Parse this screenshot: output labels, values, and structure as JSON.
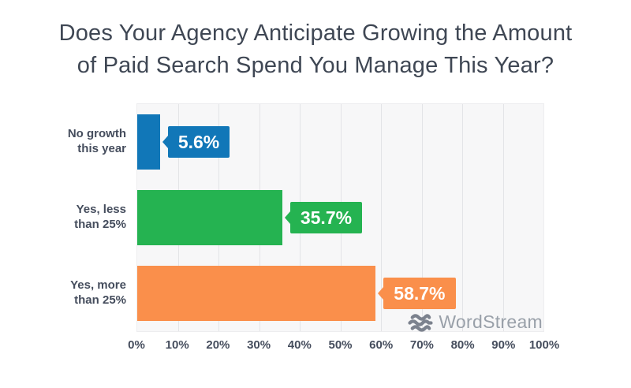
{
  "title": {
    "line1": "Does Your Agency Anticipate Growing the Amount",
    "line2": "of Paid Search Spend You Manage This Year?"
  },
  "chart_data": {
    "type": "bar",
    "orientation": "horizontal",
    "title": "Does Your Agency Anticipate Growing the Amount of Paid Search Spend You Manage This Year?",
    "categories": [
      "No growth\nthis year",
      "Yes, less\nthan 25%",
      "Yes, more\nthan 25%"
    ],
    "values": [
      5.6,
      35.7,
      58.7
    ],
    "value_labels": [
      "5.6%",
      "35.7%",
      "58.7%"
    ],
    "bar_colors": [
      "#1177b8",
      "#25b351",
      "#fa8f4b"
    ],
    "x_ticks": [
      "0%",
      "10%",
      "20%",
      "30%",
      "40%",
      "50%",
      "60%",
      "70%",
      "80%",
      "90%",
      "100%"
    ],
    "xlim": [
      0,
      100
    ],
    "grid": true,
    "legend": false,
    "plot_background": "#f7f7f8",
    "gridline_color": "#e3e4e7",
    "label_color": "#454d5d",
    "title_color": "#3f4754"
  },
  "watermark": {
    "icon": "wordstream-waves-icon",
    "text": "WordStream",
    "icon_color": "#7c828e",
    "text_color": "#99a0a9"
  }
}
